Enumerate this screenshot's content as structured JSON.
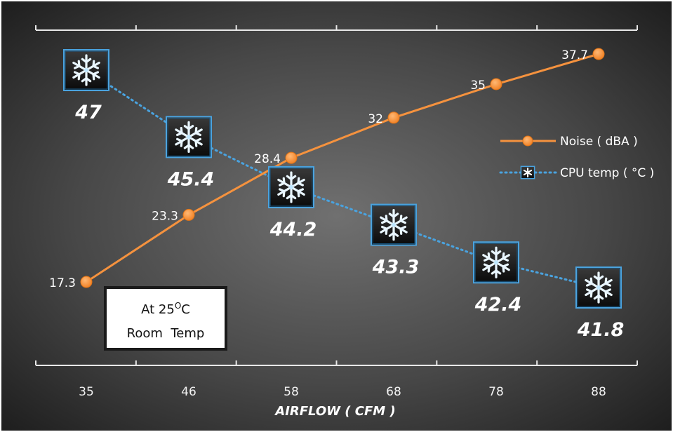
{
  "chart_data": {
    "type": "line",
    "categories": [
      "35",
      "46",
      "58",
      "68",
      "78",
      "88"
    ],
    "xlabel": "AIRFLOW ( CFM )",
    "ylim": [
      15,
      40
    ],
    "temp_ylim": [
      40,
      48
    ],
    "grid": false,
    "legend_position": "right",
    "series": [
      {
        "name": "Noise ( dBA )",
        "values": [
          17.3,
          23.3,
          28.4,
          32,
          35,
          37.7
        ],
        "labels": [
          "17.3",
          "23.3",
          "28.4",
          "32",
          "35",
          "37.7"
        ],
        "color": "#f5923e",
        "marker": "circle",
        "line_style": "solid"
      },
      {
        "name": "CPU temp ( °C )",
        "values": [
          47,
          45.4,
          44.2,
          43.3,
          42.4,
          41.8
        ],
        "labels": [
          "47",
          "45.4",
          "44.2",
          "43.3",
          "42.4",
          "41.8"
        ],
        "color": "#4aa3df",
        "marker": "snowflake-icon",
        "line_style": "dotted"
      }
    ],
    "annotation": {
      "line1_prefix": "At 25",
      "line1_degree": "O",
      "line1_suffix": "C",
      "line2": "Room  Temp"
    }
  },
  "colors": {
    "background_center": "#6d6d6d",
    "background_edge": "#1f1f1f",
    "axis": "#e8e8e8"
  }
}
